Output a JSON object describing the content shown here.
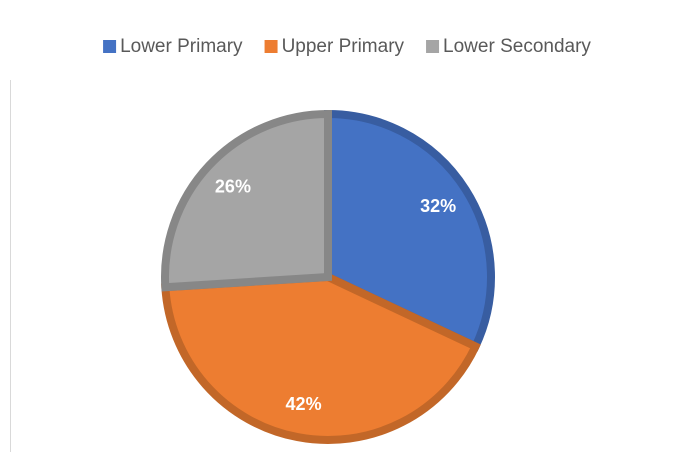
{
  "chart_data": {
    "type": "pie",
    "categories": [
      "Lower Primary",
      "Upper Primary",
      "Lower Secondary"
    ],
    "values": [
      32,
      42,
      26
    ],
    "value_labels": [
      "32%",
      "42%",
      "26%"
    ],
    "colors": [
      "#4472c4",
      "#ed7d31",
      "#a5a5a5"
    ],
    "legend": "top"
  }
}
